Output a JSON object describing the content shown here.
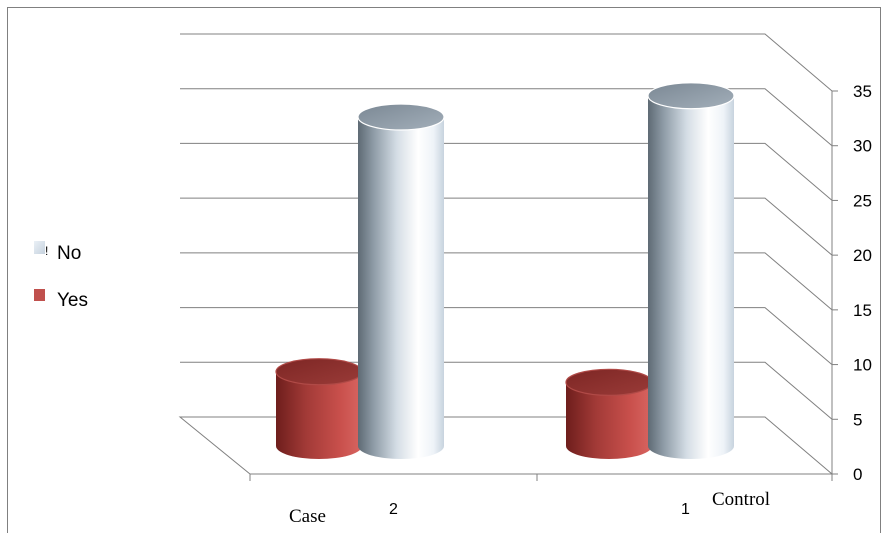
{
  "chart_data": {
    "type": "bar",
    "style": "3d-cylinder",
    "categories": [
      "Case",
      "Control"
    ],
    "category_indices": [
      "2",
      "1"
    ],
    "series": [
      {
        "name": "Yes",
        "values": [
          7,
          6
        ],
        "color": "#c0504d"
      },
      {
        "name": "No",
        "values": [
          31,
          33
        ],
        "color": "#c6d2de"
      }
    ],
    "ylim": [
      0,
      35
    ],
    "yticks": [
      0,
      5,
      10,
      15,
      20,
      25,
      30,
      35
    ],
    "grid": true,
    "legend_position": "left",
    "legend_order": [
      "No",
      "Yes"
    ],
    "legend_no_prefix": "!",
    "axis_position": "right",
    "xlabel": "",
    "ylabel": "",
    "title": ""
  }
}
